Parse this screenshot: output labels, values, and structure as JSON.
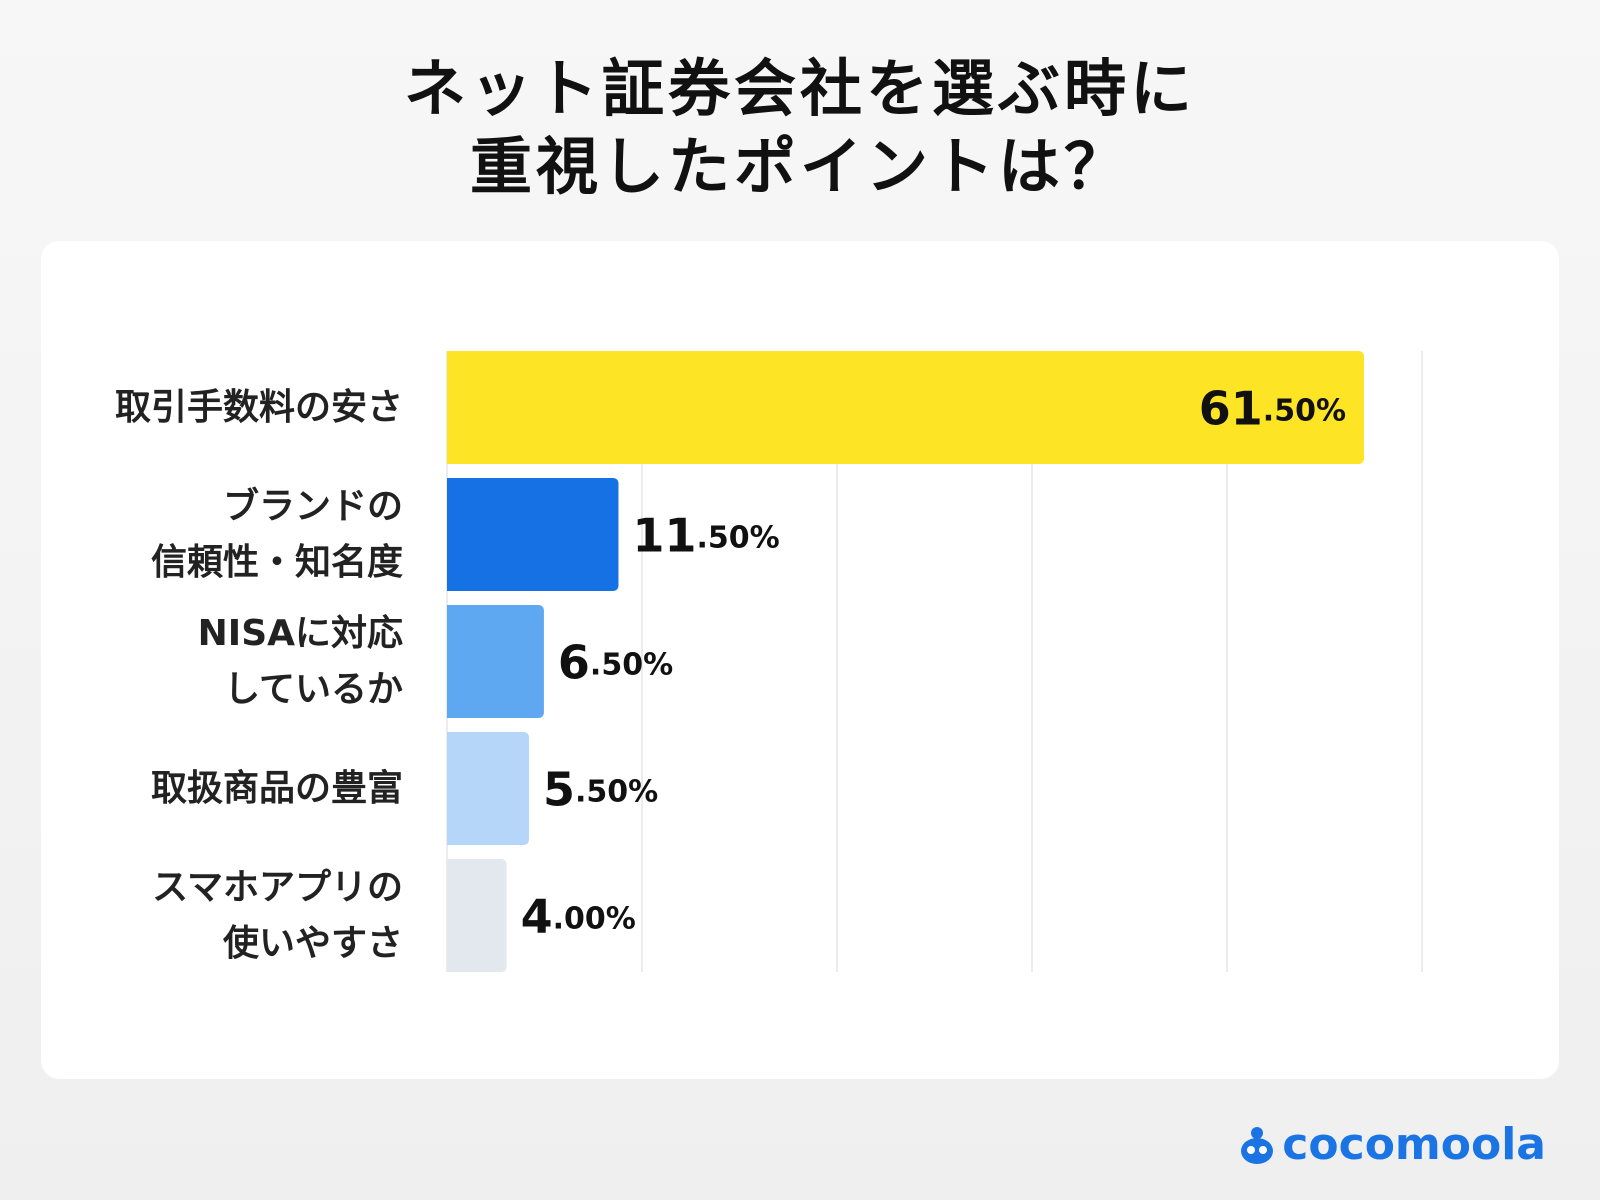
{
  "chart_data": {
    "type": "bar",
    "orientation": "horizontal",
    "title": "ネット証券会社を選ぶ時に\n重視したポイントは？",
    "categories": [
      "取引手数料の安さ",
      "ブランドの\n信頼性・知名度",
      "NISAに対応\nしているか",
      "取扱商品の豊富",
      "スマホアプリの\n使いやすさ"
    ],
    "values": [
      61.5,
      11.5,
      6.5,
      5.5,
      4.0
    ],
    "value_labels": [
      "61.50%",
      "11.50%",
      "6.50%",
      "5.50%",
      "4.00%"
    ],
    "colors": [
      "#fde425",
      "#1672e4",
      "#5ea8f2",
      "#b5d6f8",
      "#e3e8ee"
    ],
    "label_colors": [
      "#111111",
      "#ffffff",
      "#111111",
      "#111111",
      "#111111"
    ],
    "grid": true
  },
  "logo": "cocomoola"
}
